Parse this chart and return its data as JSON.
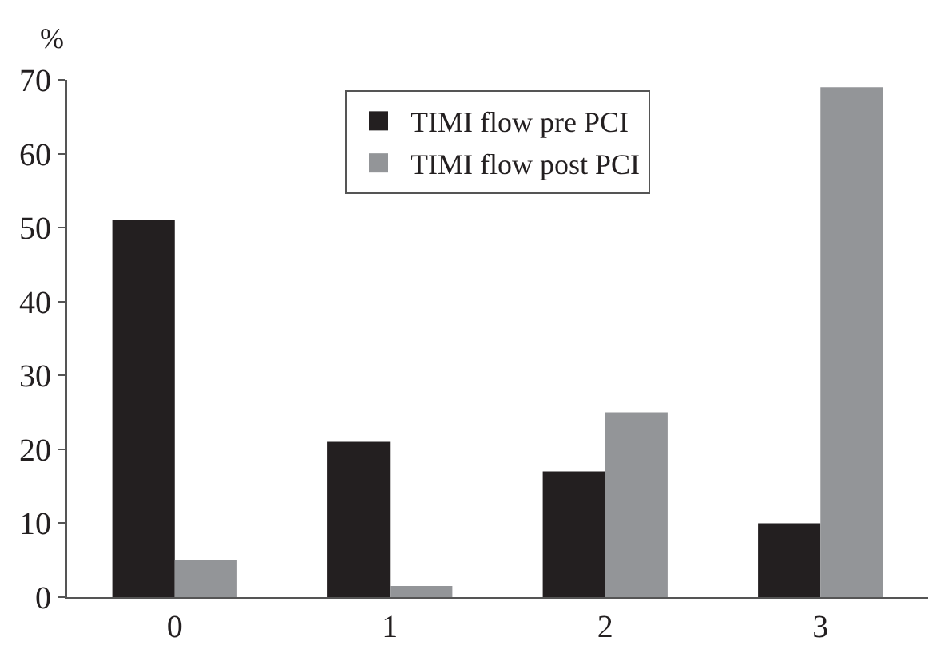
{
  "chart_data": {
    "type": "bar",
    "ylabel": "%",
    "categories": [
      "0",
      "1",
      "2",
      "3"
    ],
    "series": [
      {
        "name": "TIMI flow pre PCI",
        "color": "#231f20",
        "values": [
          51,
          21,
          17,
          10
        ]
      },
      {
        "name": "TIMI flow post PCI",
        "color": "#939598",
        "values": [
          5,
          1.5,
          25,
          69
        ]
      }
    ],
    "ylim": [
      0,
      70
    ],
    "yticks": [
      0,
      10,
      20,
      30,
      40,
      50,
      60,
      70
    ],
    "legend": "top"
  }
}
